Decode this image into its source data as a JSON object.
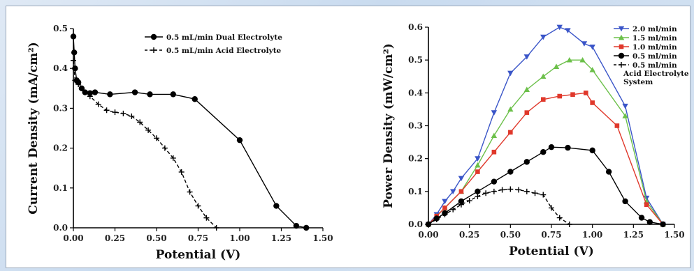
{
  "chart_data": [
    {
      "type": "line",
      "xlabel": "Potential (V)",
      "ylabel": "Current Density (mA/cm²)",
      "xlim": [
        0,
        1.5
      ],
      "ylim": [
        0,
        0.5
      ],
      "xticks": [
        "0.00",
        "0.25",
        "0.50",
        "0.75",
        "1.00",
        "1.25",
        "1.50"
      ],
      "yticks": [
        "0.0",
        "0.1",
        "0.2",
        "0.3",
        "0.4",
        "0.5"
      ],
      "legend_position": "top-right",
      "series": [
        {
          "name": "0.5 mL/min Dual Electrolyte",
          "marker": "circle",
          "dash": "solid",
          "color": "#000000",
          "x": [
            0.0,
            0.005,
            0.01,
            0.02,
            0.03,
            0.05,
            0.07,
            0.1,
            0.13,
            0.22,
            0.37,
            0.46,
            0.6,
            0.73,
            1.0,
            1.22,
            1.34,
            1.4
          ],
          "y": [
            0.48,
            0.44,
            0.4,
            0.37,
            0.365,
            0.35,
            0.34,
            0.338,
            0.34,
            0.335,
            0.34,
            0.335,
            0.335,
            0.323,
            0.22,
            0.055,
            0.005,
            0.0
          ]
        },
        {
          "name": "0.5 mL/min Acid Electrolyte",
          "marker": "plus",
          "dash": "dashed",
          "color": "#000000",
          "x": [
            0.0,
            0.01,
            0.03,
            0.06,
            0.1,
            0.15,
            0.2,
            0.25,
            0.3,
            0.35,
            0.4,
            0.45,
            0.5,
            0.55,
            0.6,
            0.65,
            0.7,
            0.75,
            0.8,
            0.86
          ],
          "y": [
            0.42,
            0.37,
            0.36,
            0.345,
            0.33,
            0.31,
            0.295,
            0.29,
            0.287,
            0.28,
            0.265,
            0.245,
            0.225,
            0.2,
            0.175,
            0.14,
            0.09,
            0.055,
            0.025,
            0.0
          ]
        }
      ]
    },
    {
      "type": "line",
      "xlabel": "Potential (V)",
      "ylabel": "Power Density (mW/cm²)",
      "xlim": [
        0,
        1.5
      ],
      "ylim": [
        0,
        0.6
      ],
      "xticks": [
        "0.00",
        "0.25",
        "0.50",
        "0.75",
        "1.00",
        "1.25",
        "1.50"
      ],
      "yticks": [
        "0.0",
        "0.1",
        "0.2",
        "0.3",
        "0.4",
        "0.5",
        "0.6"
      ],
      "legend_position": "top-right",
      "series": [
        {
          "name": "2.0 ml/min",
          "marker": "triangle-down",
          "dash": "solid",
          "color": "#3a55c8",
          "x": [
            0.0,
            0.05,
            0.1,
            0.15,
            0.2,
            0.3,
            0.4,
            0.5,
            0.6,
            0.7,
            0.8,
            0.85,
            0.95,
            1.0,
            1.2,
            1.33,
            1.43
          ],
          "y": [
            0.0,
            0.03,
            0.07,
            0.1,
            0.14,
            0.2,
            0.34,
            0.46,
            0.51,
            0.57,
            0.6,
            0.59,
            0.55,
            0.54,
            0.36,
            0.08,
            0.0
          ]
        },
        {
          "name": "1.5 ml/min",
          "marker": "triangle-up",
          "dash": "solid",
          "color": "#6cc04a",
          "x": [
            0.0,
            0.05,
            0.1,
            0.2,
            0.3,
            0.4,
            0.5,
            0.6,
            0.7,
            0.78,
            0.86,
            0.94,
            1.0,
            1.2,
            1.33,
            1.43
          ],
          "y": [
            0.0,
            0.025,
            0.05,
            0.1,
            0.18,
            0.27,
            0.35,
            0.41,
            0.45,
            0.48,
            0.5,
            0.5,
            0.47,
            0.33,
            0.07,
            0.0
          ]
        },
        {
          "name": "1.0 ml/min",
          "marker": "square",
          "dash": "solid",
          "color": "#e0382b",
          "x": [
            0.0,
            0.05,
            0.1,
            0.2,
            0.3,
            0.4,
            0.5,
            0.6,
            0.7,
            0.8,
            0.88,
            0.96,
            1.0,
            1.15,
            1.33,
            1.43
          ],
          "y": [
            0.0,
            0.025,
            0.05,
            0.1,
            0.16,
            0.22,
            0.28,
            0.34,
            0.38,
            0.39,
            0.395,
            0.4,
            0.37,
            0.3,
            0.06,
            0.0
          ]
        },
        {
          "name": "0.5 ml/min",
          "marker": "circle",
          "dash": "solid",
          "color": "#000000",
          "x": [
            0.0,
            0.05,
            0.1,
            0.2,
            0.3,
            0.4,
            0.5,
            0.6,
            0.7,
            0.75,
            0.85,
            1.0,
            1.1,
            1.2,
            1.3,
            1.35,
            1.43
          ],
          "y": [
            0.0,
            0.018,
            0.034,
            0.07,
            0.1,
            0.13,
            0.16,
            0.19,
            0.22,
            0.235,
            0.233,
            0.225,
            0.16,
            0.07,
            0.02,
            0.007,
            0.0
          ]
        },
        {
          "name": "0.5 ml/min Acid Electrolyte System",
          "marker": "plus",
          "dash": "dashed",
          "color": "#000000",
          "x": [
            0.0,
            0.05,
            0.1,
            0.15,
            0.2,
            0.25,
            0.3,
            0.35,
            0.4,
            0.45,
            0.5,
            0.55,
            0.6,
            0.65,
            0.7,
            0.75,
            0.8,
            0.86
          ],
          "y": [
            0.0,
            0.015,
            0.03,
            0.045,
            0.06,
            0.072,
            0.085,
            0.095,
            0.1,
            0.105,
            0.107,
            0.105,
            0.1,
            0.095,
            0.09,
            0.05,
            0.02,
            0.0
          ]
        }
      ]
    }
  ]
}
